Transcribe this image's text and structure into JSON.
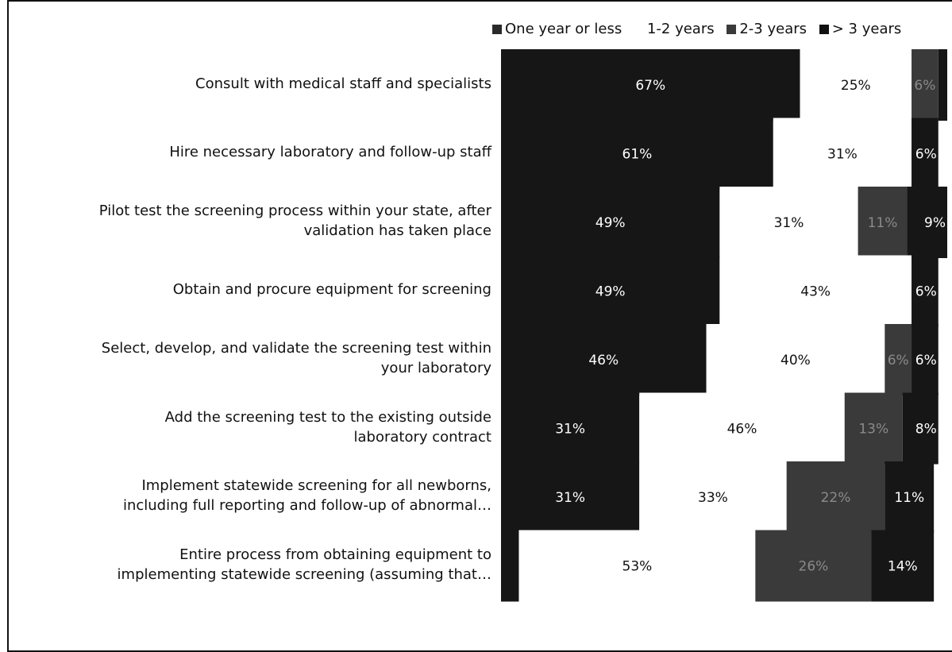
{
  "chart_data": {
    "type": "bar",
    "stacked": true,
    "orientation": "horizontal",
    "categories": [
      "Consult with medical staff and specialists",
      "Hire necessary laboratory and follow-up staff",
      "Pilot test the screening process within your state, after validation has taken place",
      "Obtain and procure equipment for screening",
      "Select, develop, and validate the screening test within your laboratory",
      "Add the screening test to the existing outside laboratory contract",
      "Implement statewide screening for all newborns, including full reporting and follow-up of abnormal…",
      "Entire process from obtaining equipment to implementing statewide screening (assuming that…"
    ],
    "category_lines": [
      [
        "Consult with medical staff and specialists"
      ],
      [
        "Hire necessary laboratory and follow-up staff"
      ],
      [
        "Pilot test the screening process within your state, after",
        "validation has taken place"
      ],
      [
        "Obtain and procure equipment for screening"
      ],
      [
        "Select, develop, and validate the screening test within",
        "your laboratory"
      ],
      [
        "Add the screening test to the existing outside",
        "laboratory contract"
      ],
      [
        "Implement statewide screening for all newborns,",
        "including full reporting and follow-up of abnormal…"
      ],
      [
        "Entire process from obtaining equipment to",
        "implementing statewide screening (assuming that…"
      ]
    ],
    "series": [
      {
        "name": "One year or less",
        "color": "#161616",
        "values": [
          67,
          61,
          49,
          49,
          46,
          31,
          31,
          4
        ],
        "labels": [
          "67%",
          "61%",
          "49%",
          "49%",
          "46%",
          "31%",
          "31%",
          ""
        ]
      },
      {
        "name": "1-2 years",
        "color": "#ffffff",
        "values": [
          25,
          31,
          31,
          43,
          40,
          46,
          33,
          53
        ],
        "labels": [
          "25%",
          "31%",
          "31%",
          "43%",
          "40%",
          "46%",
          "33%",
          "53%"
        ]
      },
      {
        "name": "2-3 years",
        "color": "#3a3a3a",
        "values": [
          6,
          0,
          11,
          0,
          6,
          13,
          22,
          26
        ],
        "labels": [
          "6%",
          "",
          "11%",
          "",
          "6%",
          "13%",
          "22%",
          "26%"
        ]
      },
      {
        "name": "> 3 years",
        "color": "#161616",
        "values": [
          2,
          6,
          9,
          6,
          6,
          8,
          11,
          14
        ],
        "labels": [
          "",
          "6%",
          "9%",
          "6%",
          "6%",
          "8%",
          "11%",
          "14%"
        ]
      }
    ],
    "xlim": [
      0,
      100
    ],
    "legend_position": "top-right",
    "grid": false
  }
}
